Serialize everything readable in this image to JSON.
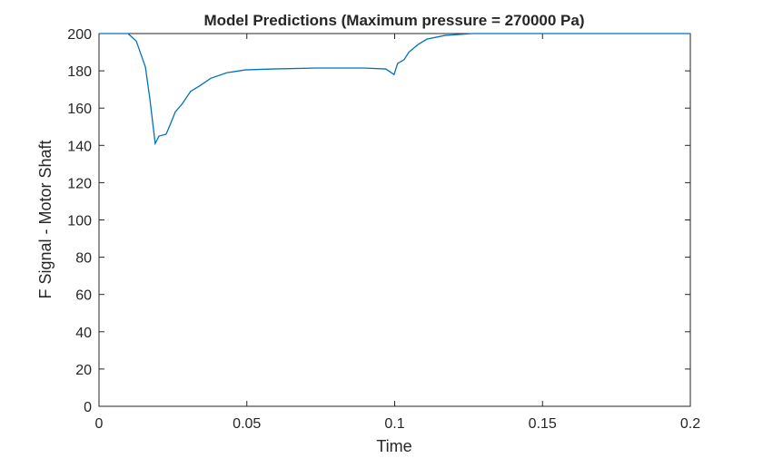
{
  "chart_data": {
    "type": "line",
    "title": "Model Predictions (Maximum pressure = 270000 Pa)",
    "x_label": "Time",
    "y_label": "F Signal - Motor Shaft",
    "x": [
      0,
      0.0098,
      0.0126,
      0.0157,
      0.0172,
      0.019,
      0.0203,
      0.0227,
      0.0243,
      0.0258,
      0.028,
      0.031,
      0.0341,
      0.0378,
      0.0433,
      0.0495,
      0.0587,
      0.074,
      0.0894,
      0.097,
      0.0998,
      0.101,
      0.1032,
      0.1048,
      0.1078,
      0.1109,
      0.117,
      0.1263,
      0.2
    ],
    "series": [
      {
        "name": "F Signal",
        "color": "#0072bd",
        "values": [
          200,
          200,
          196,
          182,
          165,
          141,
          145,
          146,
          152,
          158,
          162,
          169,
          172,
          176,
          179,
          180.5,
          181,
          181.5,
          181.5,
          181,
          178,
          184,
          186,
          190,
          194,
          197,
          199,
          200,
          200
        ]
      }
    ],
    "xlim": [
      0,
      0.2
    ],
    "ylim": [
      0,
      200
    ],
    "xticks": [
      0,
      0.05,
      0.1,
      0.15,
      0.2
    ],
    "yticks": [
      0,
      20,
      40,
      60,
      80,
      100,
      120,
      140,
      160,
      180,
      200
    ],
    "grid": false
  }
}
